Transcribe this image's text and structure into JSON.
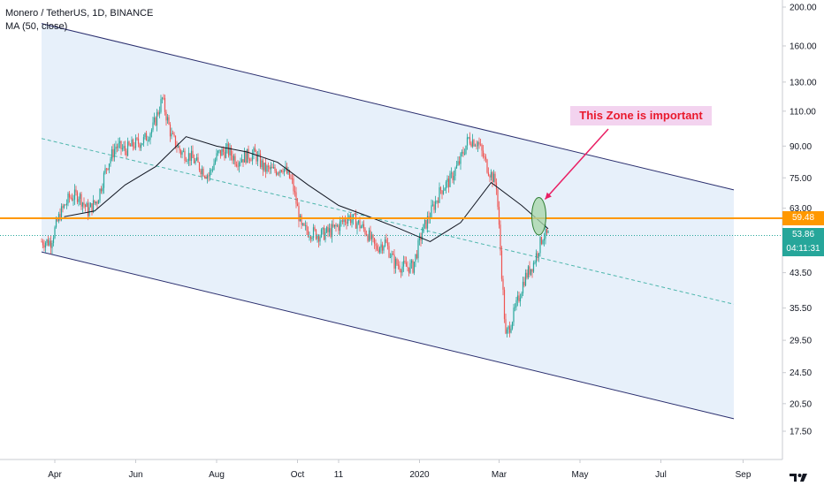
{
  "legend": {
    "title": "Monero / TetherUS, 1D, BINANCE",
    "indicator": "MA (50, close)"
  },
  "annotation": {
    "text": "This Zone is important"
  },
  "badges": {
    "level_price": "59.48",
    "last_price": "53.86",
    "countdown": "04:11:31"
  },
  "colors": {
    "channel_fill": "#e3edf9",
    "channel_line": "#2a2e6e",
    "midline": "#4db6ac",
    "level_line": "#ff9800",
    "last_price_line": "#26a69a",
    "up": "#26a69a",
    "down": "#ef5350",
    "ma": "#131722",
    "zone_fill": "#a5d6a7",
    "zone_stroke": "#2e7d32",
    "arrow": "#e91e63"
  },
  "chart_data": {
    "type": "candlestick",
    "title": "Monero / TetherUS, 1D, BINANCE",
    "scale": "log",
    "price_axis_ticks": [
      200.0,
      160.0,
      130.0,
      110.0,
      90.0,
      75.0,
      63.0,
      53.86,
      43.5,
      35.5,
      29.5,
      24.5,
      20.5,
      17.5
    ],
    "time_axis_ticks": [
      "Apr",
      "Jun",
      "Aug",
      "Oct",
      "11",
      "2020",
      "Mar",
      "May",
      "Jul",
      "Sep"
    ],
    "horizontal_level": 59.48,
    "last_price": 53.86,
    "channel": {
      "upper": [
        [
          "2019-03-22",
          182
        ],
        [
          "2020-08-25",
          70
        ]
      ],
      "lower": [
        [
          "2019-03-22",
          49
        ],
        [
          "2020-08-25",
          18.8
        ]
      ],
      "middle": [
        [
          "2019-03-22",
          94
        ],
        [
          "2020-08-25",
          36.3
        ]
      ]
    },
    "close_series": {
      "dates": [
        "2019-03-22",
        "2019-03-29",
        "2019-04-05",
        "2019-04-12",
        "2019-04-19",
        "2019-04-26",
        "2019-05-03",
        "2019-05-10",
        "2019-05-17",
        "2019-05-24",
        "2019-05-31",
        "2019-06-07",
        "2019-06-14",
        "2019-06-21",
        "2019-06-28",
        "2019-07-05",
        "2019-07-12",
        "2019-07-19",
        "2019-07-26",
        "2019-08-02",
        "2019-08-09",
        "2019-08-16",
        "2019-08-23",
        "2019-08-30",
        "2019-09-06",
        "2019-09-13",
        "2019-09-20",
        "2019-09-27",
        "2019-10-04",
        "2019-10-11",
        "2019-10-18",
        "2019-10-25",
        "2019-11-01",
        "2019-11-08",
        "2019-11-15",
        "2019-11-22",
        "2019-11-29",
        "2019-12-06",
        "2019-12-13",
        "2019-12-20",
        "2019-12-27",
        "2020-01-03",
        "2020-01-10",
        "2020-01-17",
        "2020-01-24",
        "2020-01-31",
        "2020-02-07",
        "2020-02-14",
        "2020-02-21",
        "2020-02-28",
        "2020-03-06",
        "2020-03-13",
        "2020-03-20",
        "2020-03-27",
        "2020-04-03",
        "2020-04-07"
      ],
      "close": [
        52,
        52,
        61,
        67,
        68,
        62,
        66,
        80,
        90,
        88,
        91,
        93,
        100,
        118,
        95,
        87,
        85,
        80,
        76,
        86,
        88,
        83,
        85,
        86,
        79,
        78,
        80,
        73,
        56,
        55,
        54,
        55,
        57,
        60,
        58,
        55,
        50,
        52,
        46,
        45,
        45,
        55,
        62,
        70,
        74,
        82,
        94,
        92,
        80,
        72,
        30,
        35,
        42,
        46,
        53.86,
        53.86
      ]
    },
    "ma50_close": {
      "dates": [
        "2019-04-08",
        "2019-05-01",
        "2019-05-24",
        "2019-06-16",
        "2019-07-09",
        "2019-08-01",
        "2019-08-24",
        "2019-09-16",
        "2019-10-09",
        "2019-11-01",
        "2019-11-24",
        "2019-12-17",
        "2020-01-09",
        "2020-02-01",
        "2020-02-24",
        "2020-03-18",
        "2020-04-07"
      ],
      "values": [
        60,
        62,
        72,
        80,
        95,
        90,
        87,
        82,
        72,
        64,
        60,
        56,
        52,
        58,
        73,
        64,
        56
      ]
    },
    "highlight_zone": {
      "date": "2020-03-31",
      "price_range": [
        54,
        67
      ]
    }
  }
}
